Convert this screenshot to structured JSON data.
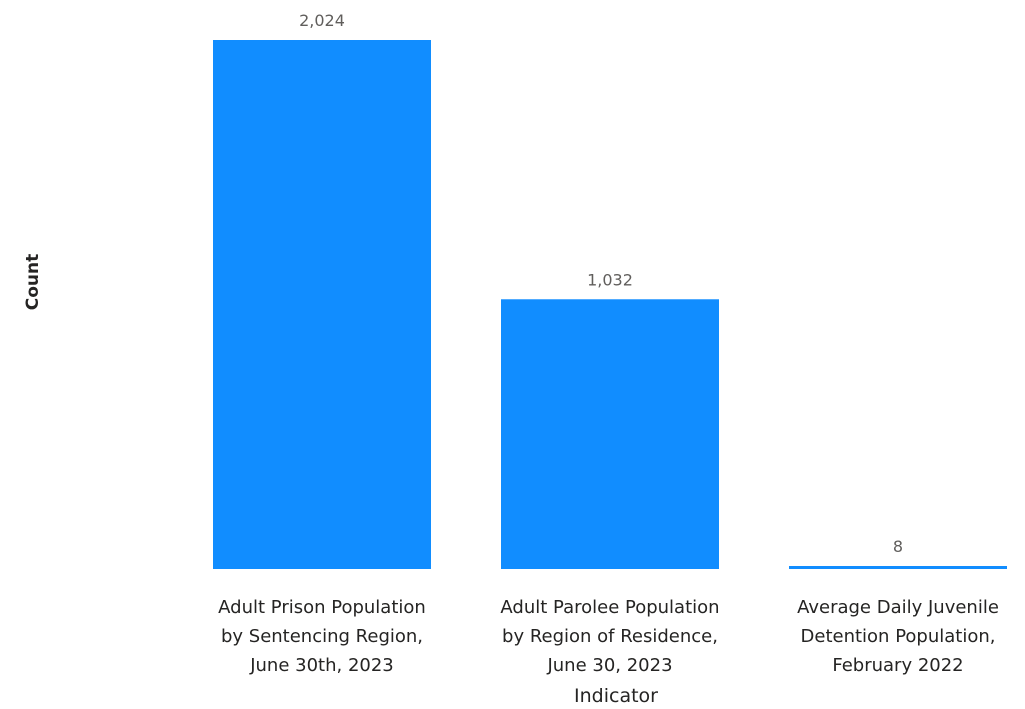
{
  "chart_data": {
    "type": "bar",
    "title": "",
    "xlabel": "Indicator",
    "ylabel": "Count",
    "categories": [
      [
        "Adult Prison Population",
        "by Sentencing Region,",
        "June 30th, 2023"
      ],
      [
        "Adult Parolee Population",
        "by Region of Residence,",
        "June 30, 2023"
      ],
      [
        "Average Daily Juvenile",
        "Detention Population,",
        "February 2022"
      ]
    ],
    "values": [
      2024,
      1032,
      8
    ],
    "value_labels": [
      "2,024",
      "1,032",
      "8"
    ],
    "ylim": [
      0,
      2024
    ],
    "grid": false,
    "legend": "none",
    "bar_color": "#118dff"
  }
}
